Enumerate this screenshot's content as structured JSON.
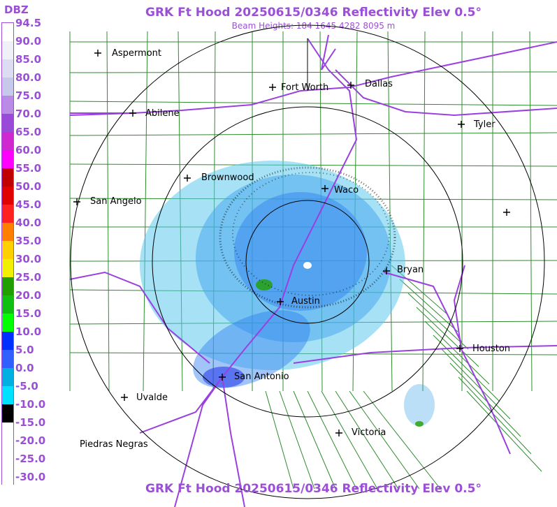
{
  "header": {
    "title": "GRK Ft Hood 20250615/0346 Reflectivity Elev 0.5°",
    "subtitle": "Beam Heights: 184 1645 4282 8095 m"
  },
  "footer": {
    "title": "GRK Ft Hood 20250615/0346 Reflectivity Elev 0.5°"
  },
  "legend": {
    "unit": "DBZ",
    "labels": [
      "94.5",
      "90.0",
      "85.0",
      "80.0",
      "75.0",
      "70.0",
      "65.0",
      "60.0",
      "55.0",
      "50.0",
      "45.0",
      "40.0",
      "35.0",
      "30.0",
      "25.0",
      "20.0",
      "15.0",
      "10.0",
      "5.0",
      "0.0",
      "-5.0",
      "-10.0",
      "-15.0",
      "-20.0",
      "-25.0",
      "-30.0"
    ],
    "colors": [
      "#ffffff",
      "#f0f0f8",
      "#dcdcf2",
      "#c8c8ec",
      "#b98be6",
      "#9a4ad8",
      "#d028d0",
      "#ff00ff",
      "#c00000",
      "#e00000",
      "#ff2020",
      "#ff8000",
      "#ffd000",
      "#f0f000",
      "#20a000",
      "#10c010",
      "#00ff00",
      "#0030ff",
      "#3060ff",
      "#00b0e0",
      "#00e0ff",
      "#000000",
      "#ffffff",
      "#ffffff",
      "#ffffff",
      "#ffffff"
    ]
  },
  "cities": [
    {
      "name": "Aspermont"
    },
    {
      "name": "Abilene"
    },
    {
      "name": "Fort Worth"
    },
    {
      "name": "Dallas"
    },
    {
      "name": "Tyler"
    },
    {
      "name": "Brownwood"
    },
    {
      "name": "San Angelo"
    },
    {
      "name": "Waco"
    },
    {
      "name": "Bryan"
    },
    {
      "name": "Austin"
    },
    {
      "name": "Houston"
    },
    {
      "name": "San Antonio"
    },
    {
      "name": "Uvalde"
    },
    {
      "name": "Victoria"
    },
    {
      "name": "Piedras Negras"
    }
  ],
  "colors": {
    "accent": "#9b4fd6",
    "county_lines": "#2e8b2e",
    "highways": "#9a40e0",
    "range_rings": "#000000"
  }
}
